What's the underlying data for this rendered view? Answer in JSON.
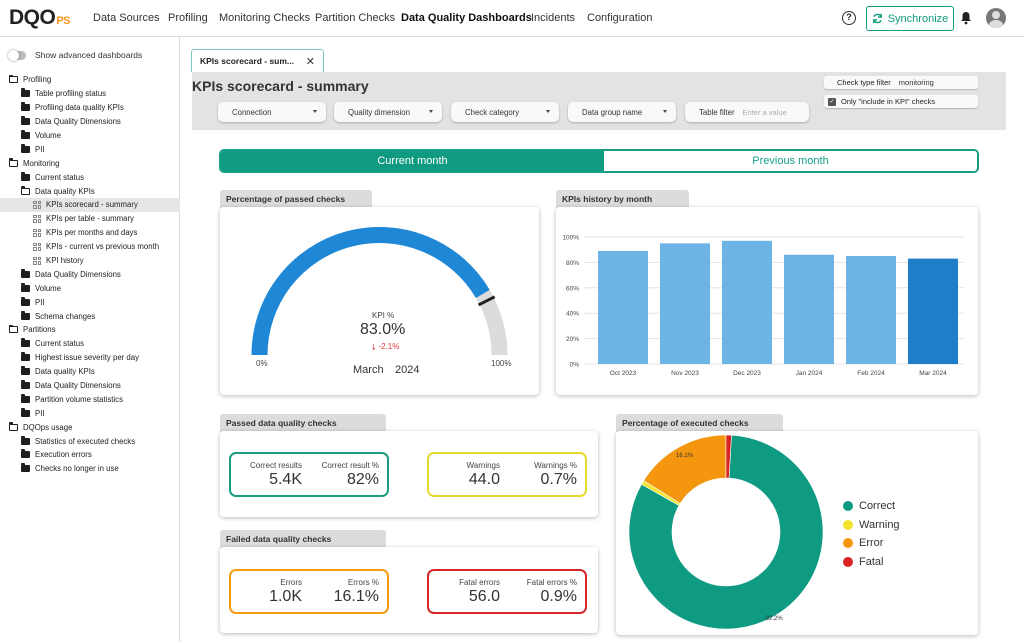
{
  "app": {
    "logo_text": "DQO",
    "logo_suffix": "PS",
    "nav": [
      "Data Sources",
      "Profiling",
      "Monitoring Checks",
      "Partition Checks",
      "Data Quality Dashboards",
      "Incidents",
      "Configuration"
    ],
    "active_nav": "Data Quality Dashboards",
    "sync_label": "Synchronize",
    "help_glyph": "?"
  },
  "sidebar": {
    "advanced_label": "Show advanced dashboards",
    "tree": [
      {
        "label": "Profiling",
        "type": "open",
        "level": 0
      },
      {
        "label": "Table profiling status",
        "type": "folder",
        "level": 1
      },
      {
        "label": "Profiling data quality KPIs",
        "type": "folder",
        "level": 1
      },
      {
        "label": "Data Quality Dimensions",
        "type": "folder",
        "level": 1
      },
      {
        "label": "Volume",
        "type": "folder",
        "level": 1
      },
      {
        "label": "PII",
        "type": "folder",
        "level": 1
      },
      {
        "label": "Monitoring",
        "type": "open",
        "level": 0
      },
      {
        "label": "Current status",
        "type": "folder",
        "level": 1
      },
      {
        "label": "Data quality KPIs",
        "type": "open",
        "level": 1
      },
      {
        "label": "KPIs scorecard - summary",
        "type": "dash",
        "level": 2,
        "selected": true
      },
      {
        "label": "KPIs per table - summary",
        "type": "dash",
        "level": 2
      },
      {
        "label": "KPIs per months and days",
        "type": "dash",
        "level": 2
      },
      {
        "label": "KPIs - current vs previous month",
        "type": "dash",
        "level": 2
      },
      {
        "label": "KPI history",
        "type": "dash",
        "level": 2
      },
      {
        "label": "Data Quality Dimensions",
        "type": "folder",
        "level": 1
      },
      {
        "label": "Volume",
        "type": "folder",
        "level": 1
      },
      {
        "label": "PII",
        "type": "folder",
        "level": 1
      },
      {
        "label": "Schema changes",
        "type": "folder",
        "level": 1
      },
      {
        "label": "Partitions",
        "type": "open",
        "level": 0
      },
      {
        "label": "Current status",
        "type": "folder",
        "level": 1
      },
      {
        "label": "Highest issue severity per day",
        "type": "folder",
        "level": 1
      },
      {
        "label": "Data quality KPIs",
        "type": "folder",
        "level": 1
      },
      {
        "label": "Data Quality Dimensions",
        "type": "folder",
        "level": 1
      },
      {
        "label": "Partition volume statistics",
        "type": "folder",
        "level": 1
      },
      {
        "label": "PII",
        "type": "folder",
        "level": 1
      },
      {
        "label": "DQOps usage",
        "type": "open",
        "level": 0
      },
      {
        "label": "Statistics of executed checks",
        "type": "folder",
        "level": 1
      },
      {
        "label": "Execution errors",
        "type": "folder",
        "level": 1
      },
      {
        "label": "Checks no longer in use",
        "type": "folder",
        "level": 1
      }
    ]
  },
  "tab": {
    "label": "KPIs scorecard - sum...",
    "close_glyph": "✕"
  },
  "filters": {
    "title": "KPIs scorecard - summary",
    "connection": "Connection",
    "quality_dimension": "Quality dimension",
    "check_category": "Check category",
    "data_group": "Data group name",
    "table_filter": "Table filter",
    "table_filter_placeholder": "Enter a value",
    "check_type_label": "Check type filter",
    "check_type_value": "monitoring",
    "kpi_only_label": "Only \"include in KPI\" checks",
    "kpi_only_checked": true
  },
  "period": {
    "current": "Current month",
    "previous": "Previous month",
    "selected": "current"
  },
  "gauge": {
    "title": "Percentage of passed checks",
    "kpi_label": "KPI %",
    "value": 83.0,
    "value_text": "83.0%",
    "delta_text": "-2.1%",
    "min_label": "0%",
    "max_label": "100%",
    "month": "March",
    "year": "2024",
    "colors": {
      "fill": "#1e88d6",
      "track": "#dcdcdc",
      "marker": "#222222"
    }
  },
  "chart_data": {
    "type": "bar",
    "title": "KPIs history by month",
    "categories": [
      "Oct 2023",
      "Nov 2023",
      "Dec 2023",
      "Jan 2024",
      "Feb 2024",
      "Mar 2024"
    ],
    "values": [
      89,
      95,
      97,
      86,
      85,
      83
    ],
    "ylim": [
      0,
      100
    ],
    "yticks": [
      "0%",
      "20%",
      "40%",
      "60%",
      "80%",
      "100%"
    ],
    "colors": {
      "bar": "#6cb3e6",
      "highlight": "#1e7fc8"
    },
    "highlight_last": true,
    "grid": true
  },
  "passed": {
    "title": "Passed data quality checks",
    "correct_results_label": "Correct results",
    "correct_results": "5.4K",
    "correct_pct_label": "Correct result %",
    "correct_pct": "82%",
    "warnings_label": "Warnings",
    "warnings": "44.0",
    "warnings_pct_label": "Warnings %",
    "warnings_pct": "0.7%",
    "colors": {
      "correct": "#1a9c80",
      "warning": "#e8d92e"
    }
  },
  "failed": {
    "title": "Failed data quality checks",
    "errors_label": "Errors",
    "errors": "1.0K",
    "errors_pct_label": "Errors %",
    "errors_pct": "16.1%",
    "fatal_label": "Fatal errors",
    "fatal": "56.0",
    "fatal_pct_label": "Fatal errors %",
    "fatal_pct": "0.9%",
    "colors": {
      "error": "#f39c12",
      "fatal": "#d62828"
    }
  },
  "donut": {
    "title": "Percentage of executed checks",
    "slices": [
      {
        "name": "Correct",
        "value": 82.2,
        "color": "#0f9a82",
        "label": "82.2%"
      },
      {
        "name": "Warning",
        "value": 0.7,
        "color": "#f0e52c",
        "label": ""
      },
      {
        "name": "Error",
        "value": 16.1,
        "color": "#f5960f",
        "label": "16.1%"
      },
      {
        "name": "Fatal",
        "value": 0.9,
        "color": "#d92424",
        "label": ""
      }
    ]
  }
}
